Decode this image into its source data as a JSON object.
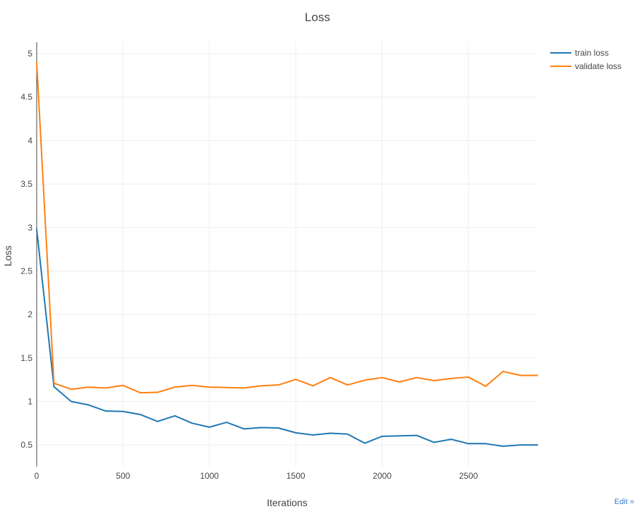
{
  "chart_data": {
    "type": "line",
    "title": "Loss",
    "xlabel": "Iterations",
    "ylabel": "Loss",
    "xlim": [
      0,
      2900
    ],
    "ylim": [
      0.25,
      5.13
    ],
    "xticks": [
      "0",
      "500",
      "1000",
      "1500",
      "2000",
      "2500"
    ],
    "yticks": [
      "0.5",
      "1",
      "1.5",
      "2",
      "2.5",
      "3",
      "3.5",
      "4",
      "4.5",
      "5"
    ],
    "grid": true,
    "legend_position": "top-right",
    "series": [
      {
        "name": "train loss",
        "color": "#1f77b4",
        "x": [
          0,
          100,
          200,
          300,
          400,
          500,
          600,
          700,
          800,
          900,
          1000,
          1100,
          1200,
          1300,
          1400,
          1500,
          1600,
          1700,
          1800,
          1900,
          2000,
          2100,
          2200,
          2300,
          2400,
          2500,
          2600,
          2700,
          2800,
          2900
        ],
        "values": [
          2.98,
          1.17,
          1.0,
          0.96,
          0.89,
          0.885,
          0.85,
          0.77,
          0.835,
          0.75,
          0.705,
          0.76,
          0.685,
          0.7,
          0.695,
          0.64,
          0.615,
          0.635,
          0.625,
          0.52,
          0.6,
          0.605,
          0.61,
          0.53,
          0.565,
          0.515,
          0.515,
          0.485,
          0.5,
          0.5
        ]
      },
      {
        "name": "validate loss",
        "color": "#ff7f0e",
        "x": [
          0,
          100,
          200,
          300,
          400,
          500,
          600,
          700,
          800,
          900,
          1000,
          1100,
          1200,
          1300,
          1400,
          1500,
          1600,
          1700,
          1800,
          1900,
          2000,
          2100,
          2200,
          2300,
          2400,
          2500,
          2600,
          2700,
          2800,
          2900
        ],
        "values": [
          4.9,
          1.21,
          1.14,
          1.165,
          1.155,
          1.185,
          1.1,
          1.105,
          1.165,
          1.185,
          1.165,
          1.16,
          1.155,
          1.18,
          1.19,
          1.255,
          1.18,
          1.275,
          1.19,
          1.245,
          1.275,
          1.225,
          1.275,
          1.24,
          1.265,
          1.28,
          1.175,
          1.345,
          1.3,
          1.3
        ]
      }
    ]
  },
  "ui": {
    "edit_label": "Edit »"
  }
}
